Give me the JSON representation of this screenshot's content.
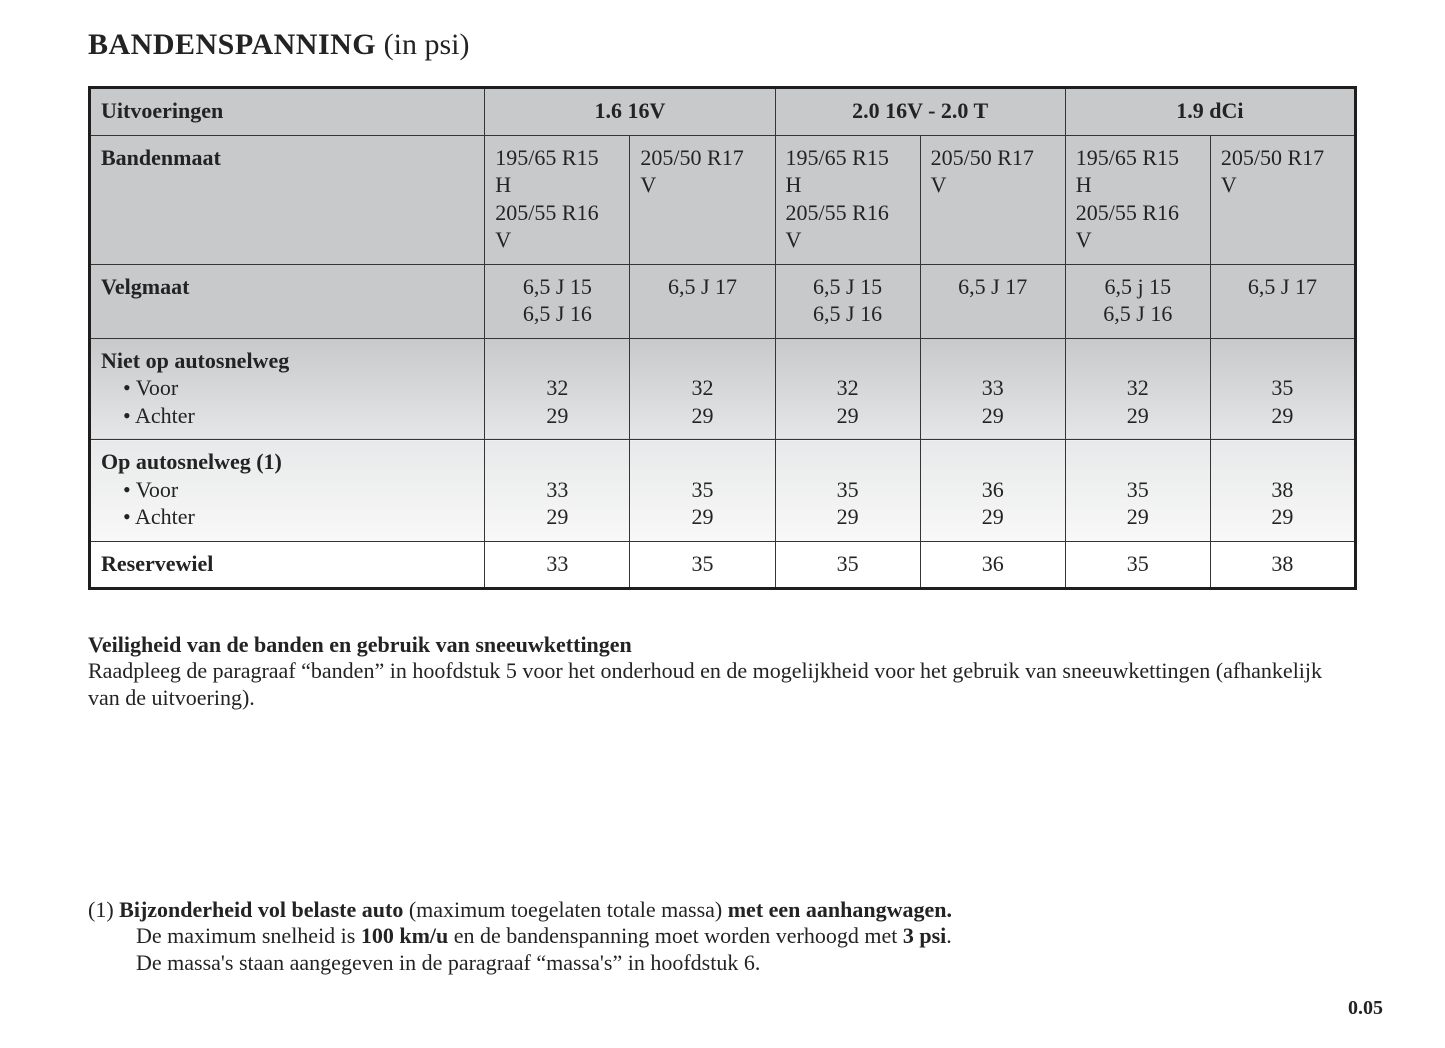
{
  "title_bold": "BANDENSPANNING",
  "title_rest": " (in psi)",
  "table": {
    "labels": {
      "uitvoeringen": "Uitvoeringen",
      "bandenmaat": "Bandenmaat",
      "velgmaat": "Velgmaat",
      "niet_hdr": "Niet op autosnelweg",
      "voor": "• Voor",
      "achter": "• Achter",
      "op_hdr": "Op autosnelweg (1)",
      "reservewiel": "Reservewiel"
    },
    "engines": [
      "1.6 16V",
      "2.0 16V - 2.0 T",
      "1.9 dCi"
    ],
    "bandenmaat": [
      "195/65 R15 H\n205/55 R16 V",
      "205/50 R17 V",
      "195/65 R15 H\n205/55 R16 V",
      "205/50 R17 V",
      "195/65 R15 H\n205/55 R16 V",
      "205/50 R17 V"
    ],
    "velgmaat": [
      "6,5 J 15\n6,5 J 16",
      "6,5 J 17",
      "6,5 J 15\n6,5 J 16",
      "6,5 J 17",
      "6,5 j 15\n6,5 J 16",
      "6,5 J 17"
    ],
    "niet_voor": [
      "32",
      "32",
      "32",
      "33",
      "32",
      "35"
    ],
    "niet_achter": [
      "29",
      "29",
      "29",
      "29",
      "29",
      "29"
    ],
    "op_voor": [
      "33",
      "35",
      "35",
      "36",
      "35",
      "38"
    ],
    "op_achter": [
      "29",
      "29",
      "29",
      "29",
      "29",
      "29"
    ],
    "reservewiel": [
      "33",
      "35",
      "35",
      "36",
      "35",
      "38"
    ]
  },
  "notes": {
    "heading": "Veiligheid van de banden en gebruik van sneeuwkettingen",
    "body": "Raadpleeg de paragraaf “banden” in hoofdstuk 5 voor het onderhoud en de mogelijkheid voor het gebruik van sneeuwkettingen (afhankelijk van de uitvoering)."
  },
  "footnote": {
    "marker": "(1) ",
    "l1a": "Bijzonderheid vol belaste auto",
    "l1b": " (maximum toegelaten totale massa) ",
    "l1c": "met een aanhangwagen.",
    "l2a": "De maximum snelheid is ",
    "l2b": "100 km/u",
    "l2c": " en de bandenspanning moet worden verhoogd met ",
    "l2d": "3 psi",
    "l2e": ".",
    "l3": "De massa's staan aangegeven in de paragraaf “massa's” in hoofdstuk 6."
  },
  "page_number": "0.05",
  "colors": {
    "text": "#232323",
    "border": "#353535",
    "outer_border": "#1e1e1e",
    "header_bg": "#c7c9cb",
    "background": "#ffffff"
  },
  "font": {
    "family": "serif",
    "title_size_pt": 22,
    "body_size_pt": 16
  }
}
